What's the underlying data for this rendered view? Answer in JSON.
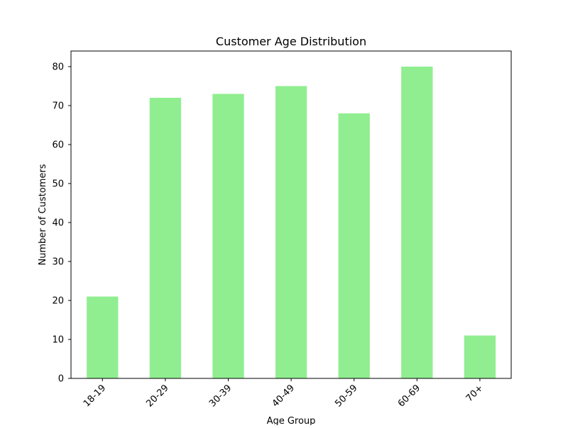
{
  "chart_data": {
    "type": "bar",
    "title": "Customer Age Distribution",
    "xlabel": "Age Group",
    "ylabel": "Number of Customers",
    "categories": [
      "18-19",
      "20-29",
      "30-39",
      "40-49",
      "50-59",
      "60-69",
      "70+"
    ],
    "values": [
      21,
      72,
      73,
      75,
      68,
      80,
      11
    ],
    "ylim": [
      0,
      84
    ],
    "yticks": [
      0,
      10,
      20,
      30,
      40,
      50,
      60,
      70,
      80
    ],
    "bar_color": "#90ee90",
    "grid": false,
    "legend": "none"
  }
}
